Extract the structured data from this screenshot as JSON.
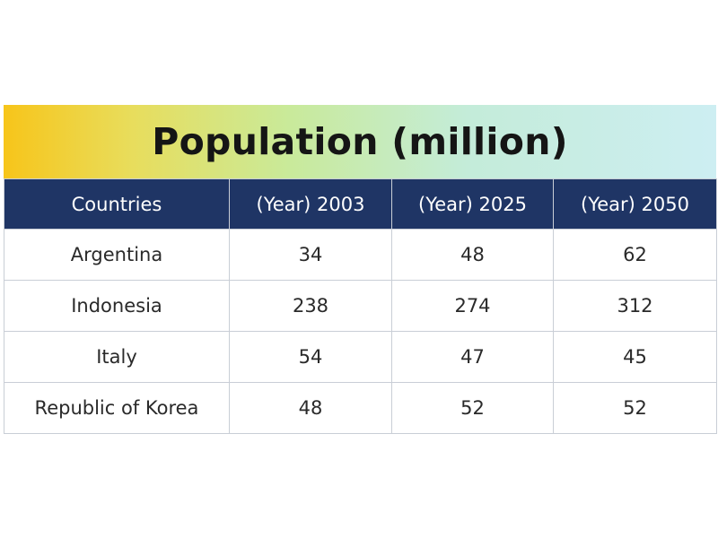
{
  "colors": {
    "header_bg": "#1f3565",
    "header_text": "#ffffff",
    "title_gradient": [
      "#f7c51a",
      "#c9ea9a",
      "#cdeef2"
    ],
    "grid": "#c9ced6"
  },
  "chart_data": {
    "type": "table",
    "title": "Population (million)",
    "columns": [
      "Countries",
      "(Year) 2003",
      "(Year) 2025",
      "(Year) 2050"
    ],
    "rows": [
      [
        "Argentina",
        "34",
        "48",
        "62"
      ],
      [
        "Indonesia",
        "238",
        "274",
        "312"
      ],
      [
        "Italy",
        "54",
        "47",
        "45"
      ],
      [
        "Republic of Korea",
        "48",
        "52",
        "52"
      ]
    ]
  }
}
